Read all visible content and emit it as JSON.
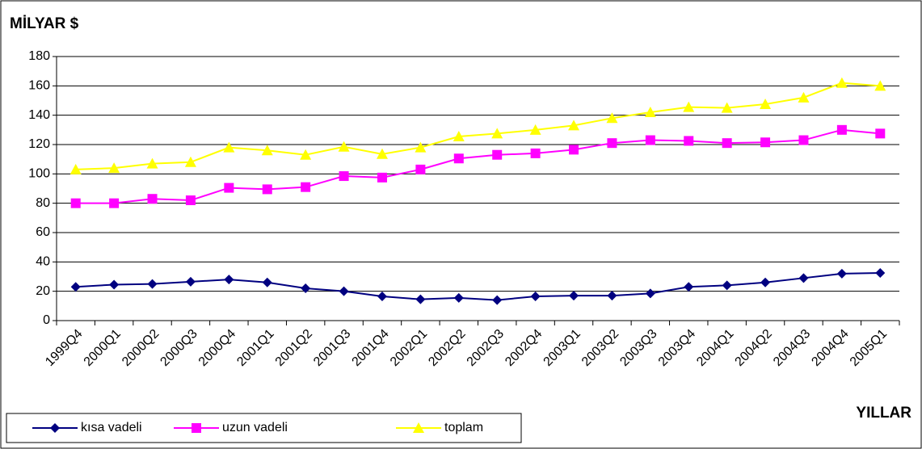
{
  "chart_data": {
    "type": "line",
    "title": "MİLYAR $",
    "x_label": "YILLAR",
    "categories": [
      "1999Q4",
      "2000Q1",
      "2000Q2",
      "2000Q3",
      "2000Q4",
      "2001Q1",
      "2001Q2",
      "2001Q3",
      "2001Q4",
      "2002Q1",
      "2002Q2",
      "2002Q3",
      "2002Q4",
      "2003Q1",
      "2003Q2",
      "2003Q3",
      "2003Q4",
      "2004Q1",
      "2004Q2",
      "2004Q3",
      "2004Q4",
      "2005Q1"
    ],
    "series": [
      {
        "name": "kısa vadeli",
        "color": "#000080",
        "marker": "diamond",
        "values": [
          23,
          24.5,
          25,
          26.5,
          28,
          26,
          22,
          20,
          16.5,
          14.5,
          15.5,
          14,
          16.5,
          17,
          17,
          18.5,
          23,
          24,
          26,
          29,
          32,
          32.5
        ]
      },
      {
        "name": "uzun vadeli",
        "color": "#ff00ff",
        "marker": "square",
        "values": [
          80,
          80,
          83,
          82,
          90.5,
          89.5,
          91,
          98.5,
          97.5,
          103,
          110.5,
          113,
          114,
          116.5,
          121,
          123,
          122.5,
          121,
          121.5,
          123,
          130,
          127.5
        ]
      },
      {
        "name": "toplam",
        "color": "#ffff00",
        "marker": "triangle",
        "values": [
          103,
          104,
          107,
          108,
          118,
          116,
          113,
          118.5,
          113.5,
          118,
          125.5,
          127.5,
          130,
          133,
          138,
          142,
          145.5,
          145,
          147.5,
          152,
          162,
          160
        ]
      }
    ],
    "ylim": [
      0,
      180
    ],
    "yticks": [
      0,
      20,
      40,
      60,
      80,
      100,
      120,
      140,
      160,
      180
    ],
    "grid": true,
    "legend": "bottom-left"
  }
}
